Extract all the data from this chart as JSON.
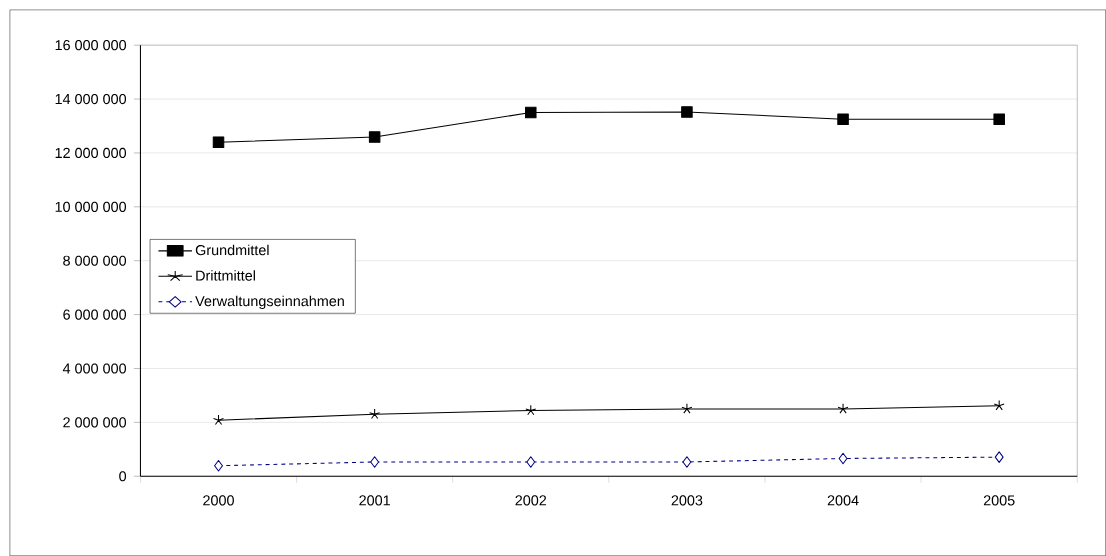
{
  "chart_data": {
    "type": "line",
    "categories": [
      "2000",
      "2001",
      "2002",
      "2003",
      "2004",
      "2005"
    ],
    "series": [
      {
        "name": "Grundmittel",
        "color": "#000000",
        "marker": "square",
        "line_style": "solid",
        "values": [
          12400000,
          12590000,
          13500000,
          13520000,
          13250000,
          13250000
        ]
      },
      {
        "name": "Drittmittel",
        "color": "#000000",
        "marker": "cross",
        "line_style": "solid",
        "values": [
          2080000,
          2300000,
          2440000,
          2500000,
          2500000,
          2620000
        ]
      },
      {
        "name": "Verwaltungseinnahmen",
        "color": "#000080",
        "marker": "diamond",
        "line_style": "dashed",
        "values": [
          390000,
          530000,
          530000,
          530000,
          660000,
          710000
        ]
      }
    ],
    "ylim": [
      0,
      16000000
    ],
    "yticks": [
      {
        "value": 0,
        "label": "0"
      },
      {
        "value": 2000000,
        "label": "2 000 000"
      },
      {
        "value": 4000000,
        "label": "4 000 000"
      },
      {
        "value": 6000000,
        "label": "6 000 000"
      },
      {
        "value": 8000000,
        "label": "8 000 000"
      },
      {
        "value": 10000000,
        "label": "10 000 000"
      },
      {
        "value": 12000000,
        "label": "12 000 000"
      },
      {
        "value": 14000000,
        "label": "14 000 000"
      },
      {
        "value": 16000000,
        "label": "16 000 000"
      }
    ],
    "grid": "y",
    "legend": "left"
  }
}
